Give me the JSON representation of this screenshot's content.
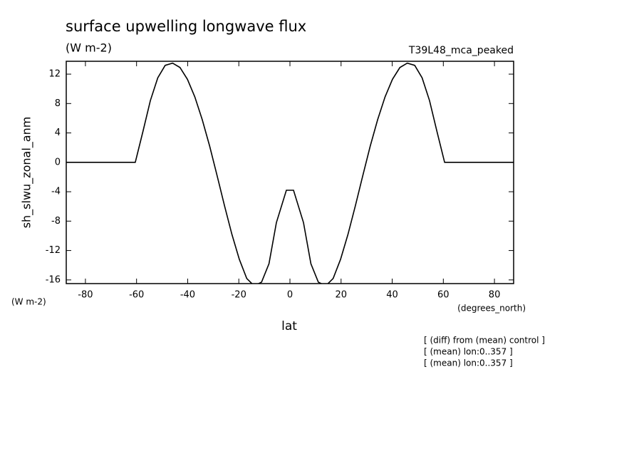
{
  "chart_data": {
    "type": "line",
    "title": "surface upwelling longwave flux",
    "subtitle": "(W m-2)",
    "experiment": "T39L48_mca_peaked",
    "y_label": "sh_slwu_zonal_anm",
    "y_units": "(W m-2)",
    "x_units": "(degrees_north)",
    "x_label": "lat",
    "notes": [
      "[ (diff) from (mean) control ]",
      "[ (mean) lon:0..357 ]",
      "[ (mean) lon:0..357 ]"
    ],
    "xlim": [
      -87.5,
      87.5
    ],
    "ylim": [
      -16.5,
      13.75
    ],
    "xticks": [
      -80,
      -60,
      -40,
      -20,
      0,
      20,
      40,
      60,
      80
    ],
    "yticks": [
      -16,
      -12,
      -8,
      -4,
      0,
      4,
      8,
      12
    ],
    "x": [
      -87.9,
      -60.5,
      -57.5,
      -54.6,
      -51.7,
      -48.8,
      -45.9,
      -43.0,
      -40.1,
      -37.2,
      -34.3,
      -31.4,
      -28.5,
      -25.6,
      -22.7,
      -19.8,
      -16.9,
      -14.0,
      -11.1,
      -8.2,
      -5.3,
      -1.4,
      1.4,
      5.3,
      8.2,
      11.1,
      14.0,
      16.9,
      19.8,
      22.7,
      25.6,
      28.5,
      31.4,
      34.3,
      37.2,
      40.1,
      43.0,
      45.9,
      48.8,
      51.7,
      54.6,
      57.5,
      60.5,
      87.9
    ],
    "series": [
      {
        "color": "#000000",
        "values": [
          0,
          0,
          4.2,
          8.4,
          11.5,
          13.2,
          13.5,
          12.9,
          11.3,
          8.9,
          5.8,
          2.2,
          -1.8,
          -5.9,
          -9.8,
          -13.2,
          -15.8,
          -16.8,
          -16.3,
          -13.8,
          -8.2,
          -3.8,
          -3.8,
          -8.2,
          -13.8,
          -16.3,
          -16.8,
          -15.8,
          -13.2,
          -9.8,
          -5.9,
          -1.8,
          2.2,
          5.8,
          8.9,
          11.3,
          12.9,
          13.5,
          13.2,
          11.5,
          8.4,
          4.2,
          0,
          0
        ]
      }
    ]
  }
}
